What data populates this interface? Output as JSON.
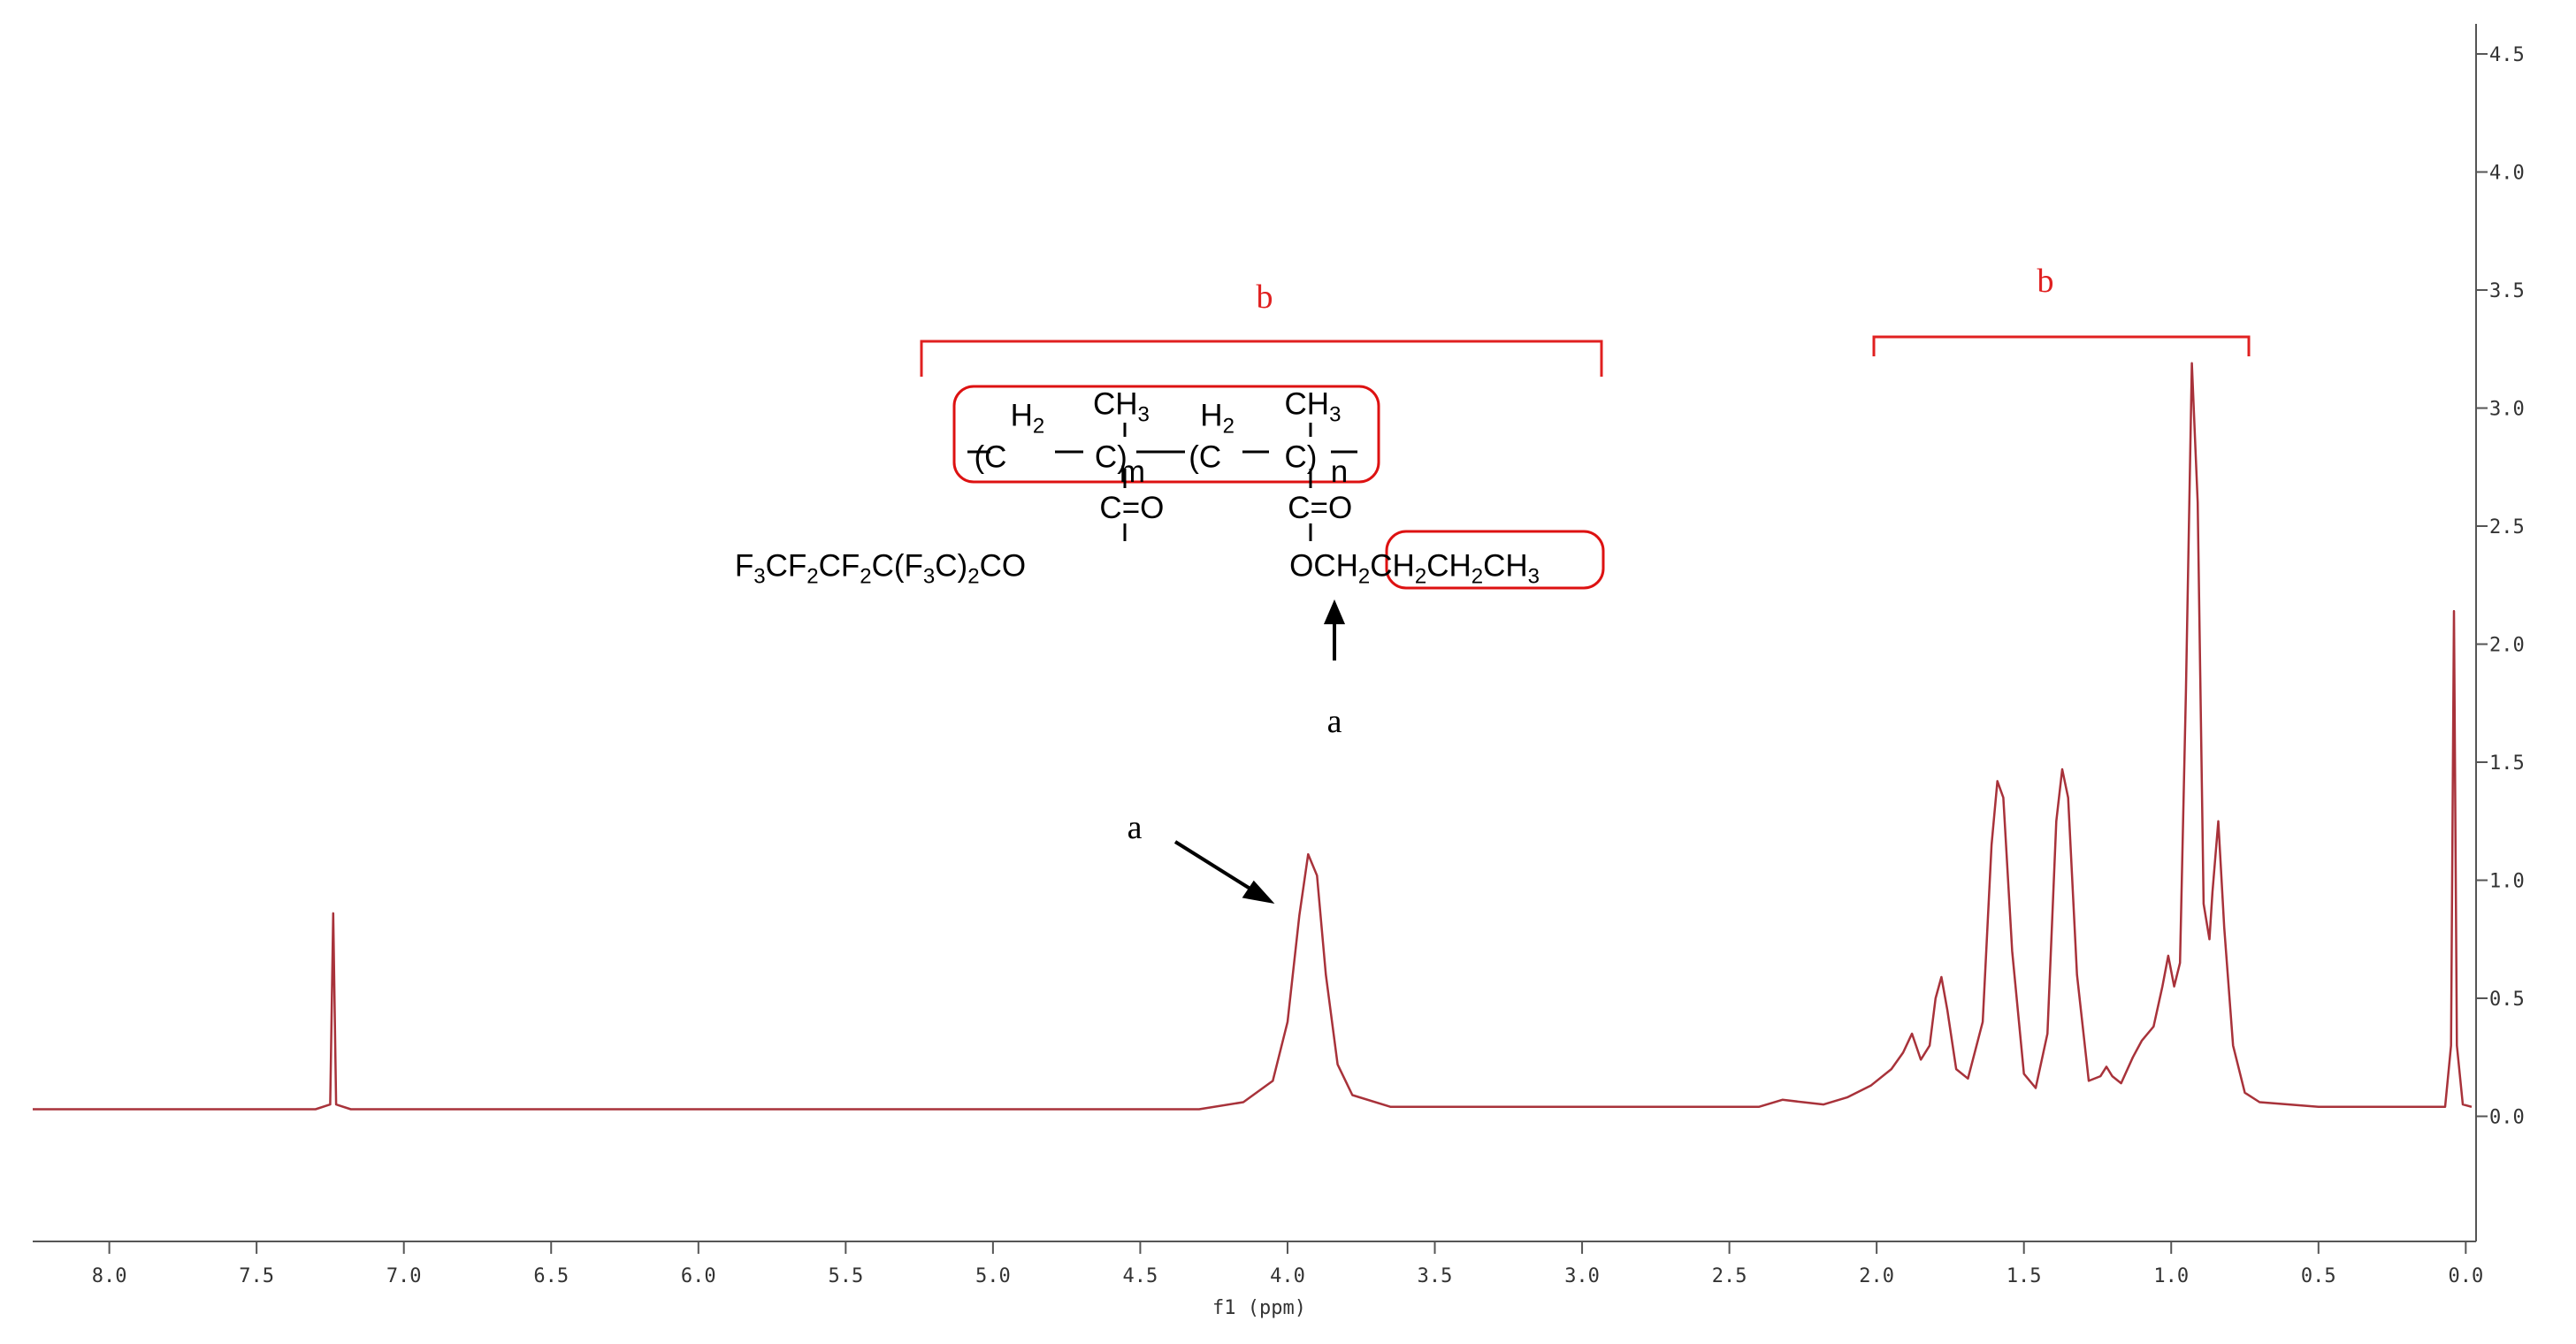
{
  "chart_data": {
    "type": "line",
    "xlabel": "f1 (ppm)",
    "xlim": [
      8.26,
      -0.02
    ],
    "ylim": [
      -0.53,
      4.59
    ],
    "xticks": [
      {
        "value": 8,
        "label": "8.0"
      },
      7.5,
      {
        "value": 7,
        "label": "7.0"
      },
      6.5,
      {
        "value": 6,
        "label": "6.0"
      },
      5.5,
      {
        "value": 5,
        "label": "5.0"
      },
      4.5,
      {
        "value": 4,
        "label": "4.0"
      },
      3.5,
      {
        "value": 3,
        "label": "3.0"
      },
      2.5,
      {
        "value": 2,
        "label": "2.0"
      },
      1.5,
      {
        "value": 1,
        "label": "1.0"
      },
      0.5,
      {
        "value": 0,
        "label": "0.0"
      }
    ],
    "yticks": [
      {
        "value": 0,
        "label": "0.0"
      },
      0.5,
      {
        "value": 1,
        "label": "1.0"
      },
      1.5,
      {
        "value": 2,
        "label": "2.0"
      },
      2.5,
      {
        "value": 3,
        "label": "3.0"
      },
      3.5,
      {
        "value": 4,
        "label": "4.0"
      },
      4.5
    ],
    "x": [
      8.26,
      7.3,
      7.25,
      7.24,
      7.23,
      7.18,
      4.3,
      4.15,
      4.05,
      4.0,
      3.96,
      3.93,
      3.9,
      3.87,
      3.83,
      3.78,
      3.65,
      2.4,
      2.32,
      2.25,
      2.18,
      2.1,
      2.02,
      1.95,
      1.91,
      1.88,
      1.85,
      1.82,
      1.8,
      1.78,
      1.76,
      1.73,
      1.69,
      1.64,
      1.61,
      1.59,
      1.57,
      1.54,
      1.5,
      1.46,
      1.42,
      1.39,
      1.37,
      1.35,
      1.32,
      1.28,
      1.24,
      1.22,
      1.2,
      1.17,
      1.13,
      1.1,
      1.06,
      1.03,
      1.01,
      0.99,
      0.97,
      0.95,
      0.93,
      0.91,
      0.89,
      0.87,
      0.86,
      0.84,
      0.82,
      0.79,
      0.75,
      0.7,
      0.5,
      0.07,
      0.05,
      0.04,
      0.03,
      0.01,
      -0.02
    ],
    "series": [
      {
        "color": "#a8323a",
        "values": [
          0.03,
          0.03,
          0.05,
          0.86,
          0.05,
          0.03,
          0.03,
          0.06,
          0.15,
          0.4,
          0.85,
          1.11,
          1.02,
          0.6,
          0.22,
          0.09,
          0.04,
          0.04,
          0.07,
          0.06,
          0.05,
          0.08,
          0.13,
          0.2,
          0.27,
          0.35,
          0.24,
          0.3,
          0.5,
          0.59,
          0.45,
          0.2,
          0.16,
          0.4,
          1.15,
          1.42,
          1.35,
          0.7,
          0.18,
          0.12,
          0.35,
          1.25,
          1.47,
          1.35,
          0.6,
          0.15,
          0.17,
          0.21,
          0.17,
          0.14,
          0.25,
          0.32,
          0.38,
          0.55,
          0.68,
          0.55,
          0.65,
          1.8,
          3.19,
          2.6,
          0.9,
          0.75,
          0.95,
          1.25,
          0.8,
          0.3,
          0.1,
          0.06,
          0.04,
          0.04,
          0.3,
          2.14,
          0.3,
          0.05,
          0.04
        ]
      }
    ],
    "annotations": [
      "b",
      "b",
      "a",
      "a"
    ],
    "structure": [
      "H2",
      "CH3",
      "H2",
      "CH3",
      "(C",
      "C)",
      "m",
      "(C",
      "C)",
      "n",
      "C=O",
      "C=O",
      "F3CF2CF2C(F3C)2CO",
      "OCH2CH2CH2CH3"
    ]
  }
}
